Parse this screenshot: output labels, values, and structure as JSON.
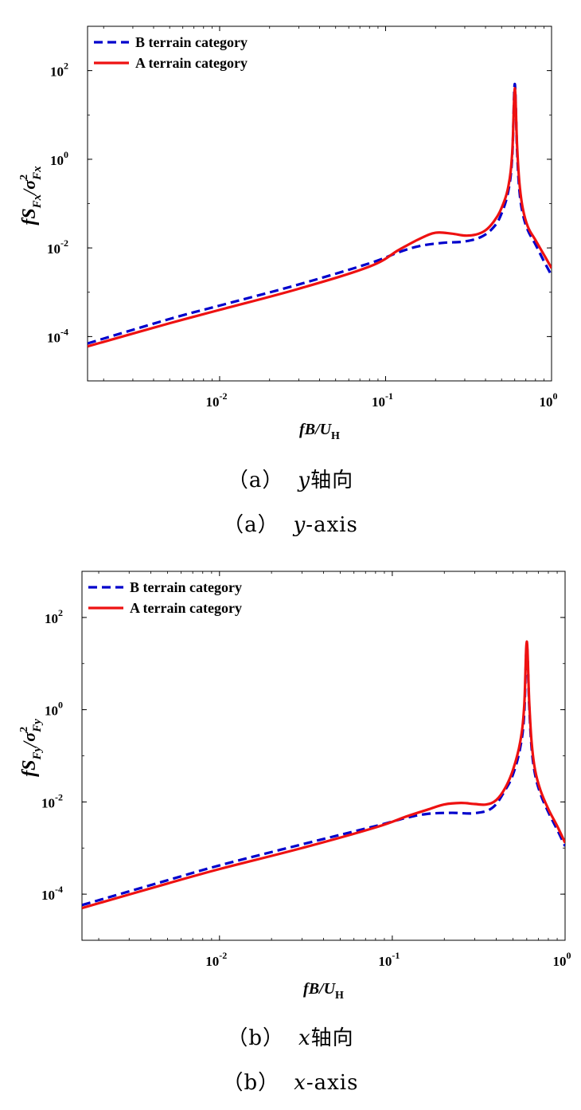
{
  "chart_data": [
    {
      "type": "line",
      "panel": "a",
      "xscale": "log",
      "yscale": "log",
      "xlim": [
        0.0016,
        1.0
      ],
      "ylim": [
        1e-05,
        1000
      ],
      "xticks": [
        0.01,
        0.1,
        1
      ],
      "xtick_labels": [
        {
          "base": "10",
          "exp": "-2"
        },
        {
          "base": "10",
          "exp": "-1"
        },
        {
          "base": "10",
          "exp": "0"
        }
      ],
      "yticks": [
        0.0001,
        0.01,
        1,
        100
      ],
      "ytick_labels": [
        {
          "base": "10",
          "exp": "-4"
        },
        {
          "base": "10",
          "exp": "-2"
        },
        {
          "base": "10",
          "exp": "0"
        },
        {
          "base": "10",
          "exp": "2"
        }
      ],
      "xlabel": {
        "main": "fB/U",
        "sub": "H"
      },
      "ylabel": {
        "f": "fS",
        "sub1": "Fx",
        "slash": "/σ",
        "sup": "2",
        "sub2": "Fx"
      },
      "legend": {
        "position": "top-left",
        "entries": [
          "B terrain category",
          "A terrain category"
        ]
      },
      "grid": false,
      "series": [
        {
          "name": "B terrain category",
          "color": "#0000cc",
          "style": "dashed",
          "x": [
            0.0016,
            0.005,
            0.01,
            0.03,
            0.08,
            0.12,
            0.16,
            0.22,
            0.3,
            0.38,
            0.45,
            0.5,
            0.55,
            0.58,
            0.6,
            0.62,
            0.64,
            0.67,
            0.72,
            0.8,
            0.9,
            1.0
          ],
          "y": [
            7e-05,
            0.00025,
            0.0005,
            0.0015,
            0.0045,
            0.008,
            0.011,
            0.013,
            0.014,
            0.018,
            0.03,
            0.06,
            0.2,
            1.2,
            50,
            1.5,
            0.2,
            0.06,
            0.025,
            0.012,
            0.005,
            0.0024
          ]
        },
        {
          "name": "A terrain category",
          "color": "#ee1111",
          "style": "solid",
          "x": [
            0.0016,
            0.005,
            0.01,
            0.03,
            0.08,
            0.12,
            0.16,
            0.2,
            0.25,
            0.3,
            0.35,
            0.4,
            0.45,
            0.5,
            0.55,
            0.58,
            0.6,
            0.62,
            0.64,
            0.67,
            0.72,
            0.8,
            0.9,
            1.0
          ],
          "y": [
            6e-05,
            0.0002,
            0.0004,
            0.0012,
            0.0038,
            0.009,
            0.016,
            0.022,
            0.021,
            0.019,
            0.02,
            0.025,
            0.04,
            0.08,
            0.25,
            1.5,
            40,
            2,
            0.3,
            0.08,
            0.03,
            0.015,
            0.007,
            0.0035
          ]
        }
      ]
    },
    {
      "type": "line",
      "panel": "b",
      "xscale": "log",
      "yscale": "log",
      "xlim": [
        0.0016,
        1.0
      ],
      "ylim": [
        1e-05,
        1000
      ],
      "xticks": [
        0.01,
        0.1,
        1
      ],
      "xtick_labels": [
        {
          "base": "10",
          "exp": "-2"
        },
        {
          "base": "10",
          "exp": "-1"
        },
        {
          "base": "10",
          "exp": "0"
        }
      ],
      "yticks": [
        0.0001,
        0.01,
        1,
        100
      ],
      "ytick_labels": [
        {
          "base": "10",
          "exp": "-4"
        },
        {
          "base": "10",
          "exp": "-2"
        },
        {
          "base": "10",
          "exp": "0"
        },
        {
          "base": "10",
          "exp": "2"
        }
      ],
      "xlabel": {
        "main": "fB/U",
        "sub": "H"
      },
      "ylabel": {
        "f": "fS",
        "sub1": "Fy",
        "slash": "/σ",
        "sup": "2",
        "sub2": "Fy"
      },
      "legend": {
        "position": "top-left",
        "entries": [
          "B terrain category",
          "A terrain category"
        ]
      },
      "grid": false,
      "series": [
        {
          "name": "B terrain category",
          "color": "#0000cc",
          "style": "dashed",
          "x": [
            0.0016,
            0.005,
            0.01,
            0.03,
            0.08,
            0.12,
            0.16,
            0.22,
            0.3,
            0.38,
            0.45,
            0.5,
            0.55,
            0.58,
            0.6,
            0.62,
            0.64,
            0.67,
            0.72,
            0.8,
            0.9,
            1.0
          ],
          "y": [
            5.8e-05,
            0.0002,
            0.00042,
            0.0012,
            0.003,
            0.0045,
            0.0055,
            0.0058,
            0.0057,
            0.0075,
            0.018,
            0.04,
            0.15,
            0.8,
            25,
            1.2,
            0.15,
            0.04,
            0.015,
            0.006,
            0.0025,
            0.0011
          ]
        },
        {
          "name": "A terrain category",
          "color": "#ee1111",
          "style": "solid",
          "x": [
            0.0016,
            0.005,
            0.01,
            0.03,
            0.08,
            0.12,
            0.16,
            0.2,
            0.25,
            0.3,
            0.35,
            0.4,
            0.45,
            0.5,
            0.55,
            0.58,
            0.6,
            0.62,
            0.64,
            0.67,
            0.72,
            0.8,
            0.9,
            1.0
          ],
          "y": [
            5e-05,
            0.00017,
            0.00035,
            0.001,
            0.0028,
            0.0048,
            0.0068,
            0.0088,
            0.0095,
            0.009,
            0.0088,
            0.011,
            0.02,
            0.05,
            0.2,
            1.2,
            30,
            1.5,
            0.2,
            0.05,
            0.018,
            0.007,
            0.003,
            0.0013
          ]
        }
      ]
    }
  ],
  "captions": {
    "a_cn": {
      "paren": "（a）",
      "var": "y",
      "text": "轴向"
    },
    "a_en": {
      "paren": "（a）",
      "var": "y",
      "text": "-axis"
    },
    "b_cn": {
      "paren": "（b）",
      "var": "x",
      "text": "轴向"
    },
    "b_en": {
      "paren": "（b）",
      "var": "x",
      "text": "-axis"
    }
  }
}
